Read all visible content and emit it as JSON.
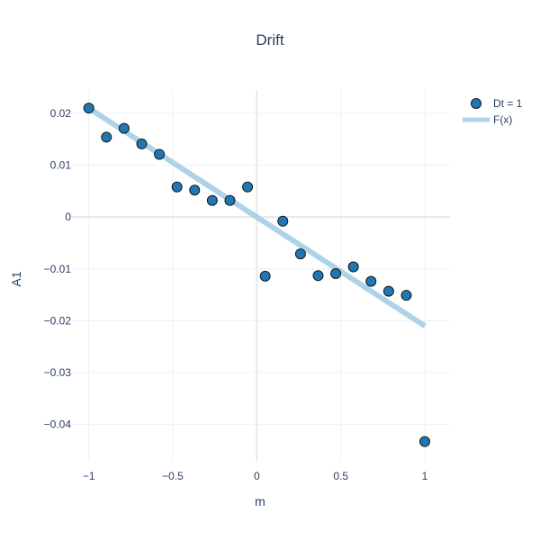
{
  "chart_data": {
    "type": "scatter",
    "title": "Drift",
    "xlabel": "m",
    "ylabel": "A1",
    "xlim": [
      -1.1,
      1.15
    ],
    "ylim": [
      -0.047,
      0.0245
    ],
    "x_ticks": [
      -1,
      -0.5,
      0,
      0.5,
      1
    ],
    "x_tick_labels": [
      "−1",
      "−0.5",
      "0",
      "0.5",
      "1"
    ],
    "y_ticks": [
      0.02,
      0.01,
      0,
      -0.01,
      -0.02,
      -0.03,
      -0.04
    ],
    "y_tick_labels": [
      "0.02",
      "0.01",
      "0",
      "−0.01",
      "−0.02",
      "−0.03",
      "−0.04"
    ],
    "grid": true,
    "legend_position": "top-right",
    "colors": {
      "points": "#1f77b4",
      "points_outline": "#1a1a1a",
      "fit_line": "#aed3e8",
      "grid": "#ebf0f8",
      "zeroline": "#e3e8f0"
    },
    "series": [
      {
        "name": "Dt = 1",
        "kind": "markers",
        "points": [
          {
            "x": -1.0,
            "y": 0.021
          },
          {
            "x": -0.895,
            "y": 0.0154
          },
          {
            "x": -0.79,
            "y": 0.0171
          },
          {
            "x": -0.685,
            "y": 0.0141
          },
          {
            "x": -0.58,
            "y": 0.0121
          },
          {
            "x": -0.475,
            "y": 0.0058
          },
          {
            "x": -0.37,
            "y": 0.0052
          },
          {
            "x": -0.265,
            "y": 0.0032
          },
          {
            "x": -0.16,
            "y": 0.0032
          },
          {
            "x": -0.055,
            "y": 0.0058
          },
          {
            "x": 0.05,
            "y": -0.0114
          },
          {
            "x": 0.155,
            "y": -0.0008
          },
          {
            "x": 0.26,
            "y": -0.0071
          },
          {
            "x": 0.365,
            "y": -0.0113
          },
          {
            "x": 0.47,
            "y": -0.0109
          },
          {
            "x": 0.575,
            "y": -0.0096
          },
          {
            "x": 0.68,
            "y": -0.0124
          },
          {
            "x": 0.785,
            "y": -0.0143
          },
          {
            "x": 0.89,
            "y": -0.0151
          },
          {
            "x": 1.0,
            "y": -0.0433
          }
        ]
      },
      {
        "name": "F(x)",
        "kind": "line",
        "points": [
          {
            "x": -1.0,
            "y": 0.021
          },
          {
            "x": 1.0,
            "y": -0.021
          }
        ]
      }
    ]
  }
}
